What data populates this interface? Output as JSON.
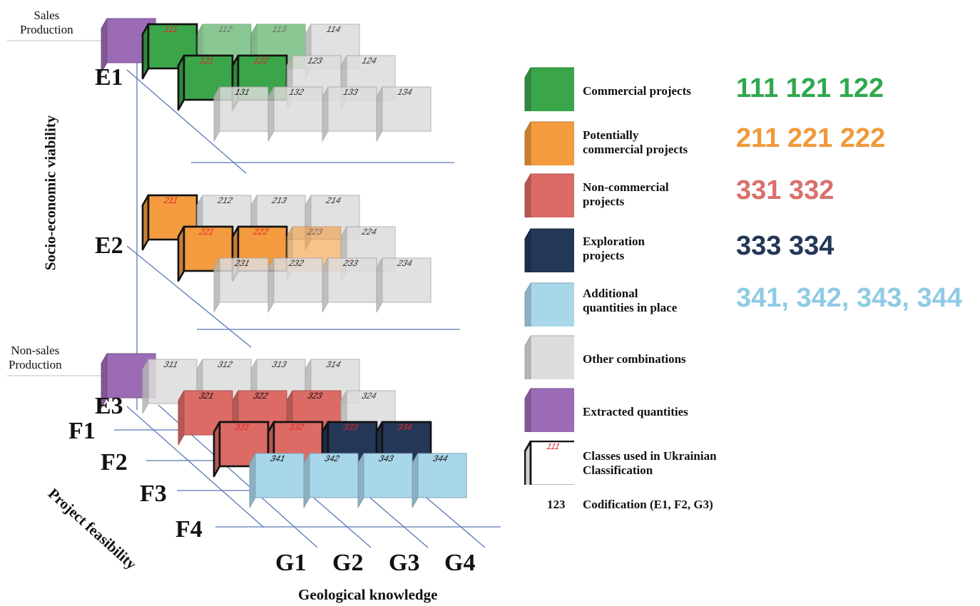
{
  "left_labels": {
    "sales_production": "Sales\nProduction",
    "non_sales_production": "Non-sales\nProduction"
  },
  "axes": {
    "e_title": "Socio-economic viability",
    "f_title": "Project feasibility",
    "g_title": "Geological knowledge",
    "e_levels": [
      "E1",
      "E2",
      "E3"
    ],
    "f_levels": [
      "F1",
      "F2",
      "F3",
      "F4"
    ],
    "g_levels": [
      "G1",
      "G2",
      "G3",
      "G4"
    ]
  },
  "cubes": [
    {
      "code": "111",
      "category": "commercial",
      "ukrainian": true
    },
    {
      "code": "112",
      "category": "commercial",
      "faded": true
    },
    {
      "code": "113",
      "category": "commercial",
      "faded": true
    },
    {
      "code": "114",
      "category": "other"
    },
    {
      "code": "121",
      "category": "commercial",
      "ukrainian": true
    },
    {
      "code": "122",
      "category": "commercial",
      "ukrainian": true
    },
    {
      "code": "123",
      "category": "other"
    },
    {
      "code": "124",
      "category": "other"
    },
    {
      "code": "131",
      "category": "other"
    },
    {
      "code": "132",
      "category": "other"
    },
    {
      "code": "133",
      "category": "other"
    },
    {
      "code": "134",
      "category": "other"
    },
    {
      "code": "211",
      "category": "potentially_commercial",
      "ukrainian": true
    },
    {
      "code": "212",
      "category": "other"
    },
    {
      "code": "213",
      "category": "other"
    },
    {
      "code": "214",
      "category": "other"
    },
    {
      "code": "221",
      "category": "potentially_commercial",
      "ukrainian": true
    },
    {
      "code": "222",
      "category": "potentially_commercial",
      "ukrainian": true
    },
    {
      "code": "223",
      "category": "potentially_commercial",
      "faded": true
    },
    {
      "code": "224",
      "category": "other"
    },
    {
      "code": "231",
      "category": "other"
    },
    {
      "code": "232",
      "category": "other"
    },
    {
      "code": "233",
      "category": "other"
    },
    {
      "code": "234",
      "category": "other"
    },
    {
      "code": "311",
      "category": "other"
    },
    {
      "code": "312",
      "category": "other"
    },
    {
      "code": "313",
      "category": "other"
    },
    {
      "code": "314",
      "category": "other"
    },
    {
      "code": "321",
      "category": "non_commercial"
    },
    {
      "code": "322",
      "category": "non_commercial"
    },
    {
      "code": "323",
      "category": "non_commercial"
    },
    {
      "code": "324",
      "category": "other"
    },
    {
      "code": "331",
      "category": "non_commercial",
      "ukrainian": true
    },
    {
      "code": "332",
      "category": "non_commercial",
      "ukrainian": true
    },
    {
      "code": "333",
      "category": "exploration",
      "ukrainian": true
    },
    {
      "code": "334",
      "category": "exploration",
      "ukrainian": true
    },
    {
      "code": "341",
      "category": "additional"
    },
    {
      "code": "342",
      "category": "additional"
    },
    {
      "code": "343",
      "category": "additional"
    },
    {
      "code": "344",
      "category": "additional"
    }
  ],
  "extracted_cubes": [
    "sales",
    "non_sales"
  ],
  "colors": {
    "commercial": "#3ba54a",
    "potentially_commercial": "#f49b3f",
    "non_commercial": "#dc6b66",
    "exploration": "#243757",
    "additional": "#a9d7ea",
    "other": "#dedcdc",
    "extracted": "#9b6bb5",
    "ukrainian_label": "#e0262b",
    "axis_line": "#5a79b5"
  },
  "legend": [
    {
      "key": "commercial",
      "label": "Commercial projects",
      "codes": "111 121 122",
      "code_color": "#2fa84f",
      "cube": "commercial"
    },
    {
      "key": "potentially_commercial",
      "label": "Potentially\ncommercial projects",
      "codes": "211 221 222",
      "code_color": "#f0993c",
      "cube": "potentially_commercial"
    },
    {
      "key": "non_commercial",
      "label": "Non-commercial\nprojects",
      "codes": "331 332",
      "code_color": "#d9706b",
      "cube": "non_commercial"
    },
    {
      "key": "exploration",
      "label": "Exploration\nprojects",
      "codes": "333 334",
      "code_color": "#243757",
      "cube": "exploration"
    },
    {
      "key": "additional",
      "label": "Additional\nquantities in place",
      "codes": "341, 342, 343, 344",
      "code_color": "#8fcbe4",
      "cube": "additional"
    },
    {
      "key": "other",
      "label": "Other combinations",
      "codes": "",
      "code_color": "#000000",
      "cube": "other"
    },
    {
      "key": "extracted",
      "label": "Extracted quantities",
      "codes": "",
      "code_color": "#000000",
      "cube": "extracted"
    },
    {
      "key": "ukrainian",
      "label": "Classes used in Ukrainian\nClassification",
      "codes": "",
      "code_color": "#000000",
      "cube": "ukrainian",
      "icon_text": "111"
    }
  ],
  "codification": {
    "example": "123",
    "label": "Codification  (E1, F2, G3)"
  }
}
